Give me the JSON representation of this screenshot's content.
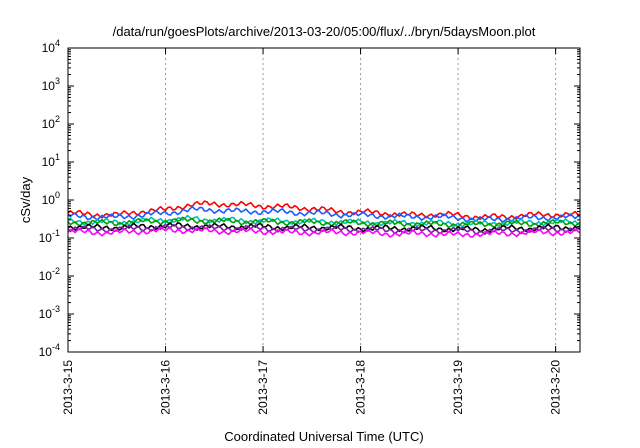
{
  "chart_data": {
    "type": "line",
    "title": "/data/run/goesPlots/archive/2013-03-20/05:00/flux/../bryn/5daysMoon.plot",
    "xlabel": "Coordinated Universal Time (UTC)",
    "ylabel": "cSv/day",
    "yscale": "log",
    "ylim": [
      0.0001,
      10000
    ],
    "y_ticks": [
      {
        "mant": "10",
        "exp": "-4"
      },
      {
        "mant": "10",
        "exp": "-3"
      },
      {
        "mant": "10",
        "exp": "-2"
      },
      {
        "mant": "10",
        "exp": "-1"
      },
      {
        "mant": "10",
        "exp": "0"
      },
      {
        "mant": "10",
        "exp": "1"
      },
      {
        "mant": "10",
        "exp": "2"
      },
      {
        "mant": "10",
        "exp": "3"
      },
      {
        "mant": "10",
        "exp": "4"
      }
    ],
    "x_ticks": [
      "2013-3-15",
      "2013-3-16",
      "2013-3-17",
      "2013-3-18",
      "2013-3-19",
      "2013-3-20"
    ],
    "xlim_days": [
      0,
      5.25
    ],
    "grid": true,
    "x": [
      0,
      0.25,
      0.5,
      0.75,
      1.0,
      1.25,
      1.5,
      1.75,
      2.0,
      2.25,
      2.5,
      2.75,
      3.0,
      3.25,
      3.5,
      3.75,
      4.0,
      4.25,
      4.5,
      4.75,
      5.0,
      5.25
    ],
    "series": [
      {
        "color": "#ff0000",
        "values": [
          0.45,
          0.42,
          0.4,
          0.5,
          0.55,
          0.75,
          0.8,
          0.75,
          0.7,
          0.65,
          0.6,
          0.5,
          0.48,
          0.45,
          0.4,
          0.42,
          0.4,
          0.35,
          0.37,
          0.4,
          0.42,
          0.4
        ]
      },
      {
        "color": "#1a5cff",
        "values": [
          0.38,
          0.36,
          0.35,
          0.4,
          0.45,
          0.55,
          0.55,
          0.5,
          0.5,
          0.48,
          0.45,
          0.42,
          0.4,
          0.38,
          0.36,
          0.36,
          0.34,
          0.3,
          0.32,
          0.34,
          0.35,
          0.35
        ]
      },
      {
        "color": "#00bfbf",
        "values": [
          0.28,
          0.27,
          0.26,
          0.28,
          0.3,
          0.32,
          0.3,
          0.29,
          0.28,
          0.28,
          0.27,
          0.27,
          0.26,
          0.25,
          0.25,
          0.25,
          0.24,
          0.24,
          0.25,
          0.26,
          0.26,
          0.26
        ]
      },
      {
        "color": "#00a000",
        "values": [
          0.26,
          0.25,
          0.25,
          0.27,
          0.28,
          0.29,
          0.28,
          0.27,
          0.27,
          0.26,
          0.26,
          0.25,
          0.25,
          0.24,
          0.24,
          0.23,
          0.23,
          0.23,
          0.24,
          0.24,
          0.25,
          0.25
        ]
      },
      {
        "color": "#000000",
        "values": [
          0.2,
          0.19,
          0.19,
          0.2,
          0.21,
          0.21,
          0.2,
          0.2,
          0.2,
          0.19,
          0.19,
          0.19,
          0.18,
          0.18,
          0.18,
          0.18,
          0.17,
          0.17,
          0.18,
          0.18,
          0.19,
          0.19
        ]
      },
      {
        "color": "#7a1fa0",
        "values": [
          0.18,
          0.17,
          0.17,
          0.18,
          0.19,
          0.19,
          0.18,
          0.18,
          0.18,
          0.17,
          0.17,
          0.17,
          0.17,
          0.16,
          0.16,
          0.16,
          0.16,
          0.15,
          0.16,
          0.16,
          0.17,
          0.17
        ]
      },
      {
        "color": "#ff00ff",
        "values": [
          0.15,
          0.14,
          0.14,
          0.15,
          0.16,
          0.16,
          0.15,
          0.15,
          0.15,
          0.14,
          0.14,
          0.14,
          0.14,
          0.13,
          0.13,
          0.13,
          0.12,
          0.13,
          0.13,
          0.14,
          0.14,
          0.14
        ]
      }
    ]
  }
}
